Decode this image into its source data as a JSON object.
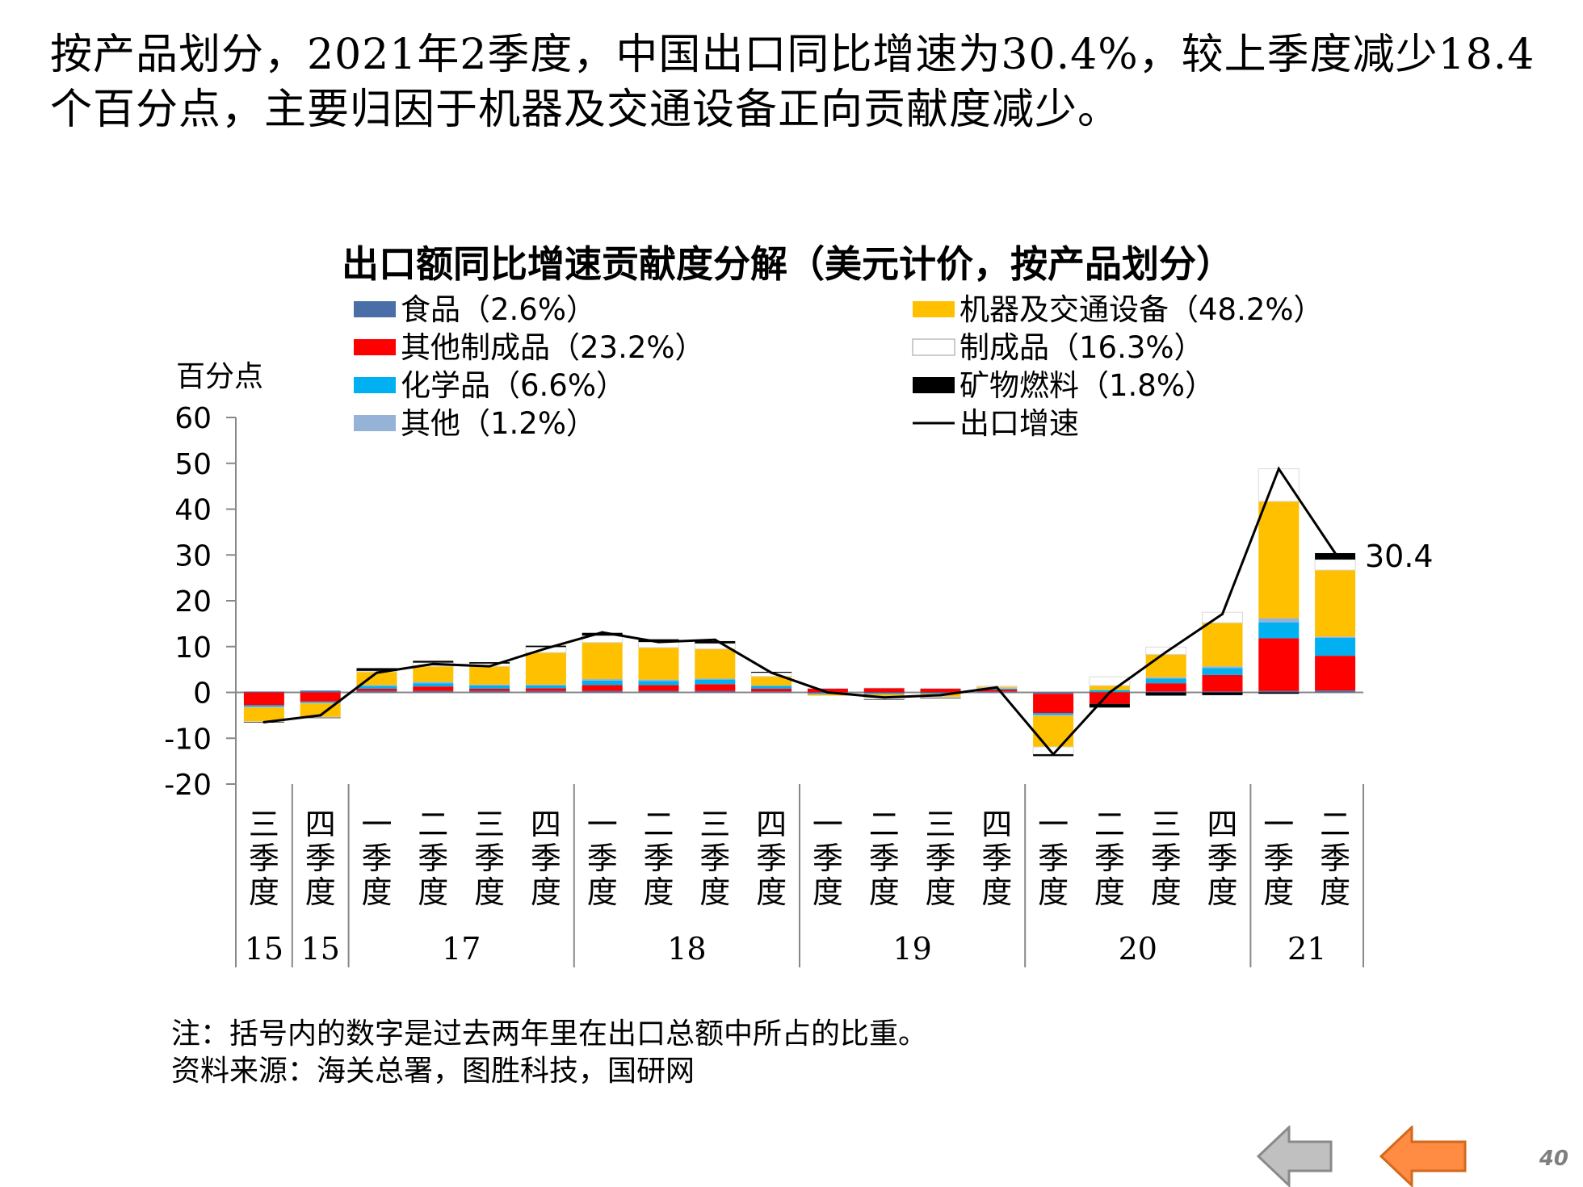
{
  "headline": {
    "line1": "按产品划分，2021年2季度，中国出口同比增速为30.4%，较上季度减少18.4",
    "line2": "个百分点，主要归因于机器及交通设备正向贡献度减少。"
  },
  "chart_data": {
    "type": "bar",
    "stacked": true,
    "title": "出口额同比增速贡献度分解（美元计价，按产品划分）",
    "ylabel": "百分点",
    "ylim": [
      -20,
      60
    ],
    "yticks": [
      60,
      50,
      40,
      30,
      20,
      10,
      0,
      -10,
      -20
    ],
    "grid": false,
    "legend": "top, two columns",
    "categories": [
      "三季度",
      "四季度",
      "一季度",
      "二季度",
      "三季度",
      "四季度",
      "一季度",
      "二季度",
      "三季度",
      "四季度",
      "一季度",
      "二季度",
      "三季度",
      "四季度",
      "一季度",
      "二季度",
      "三季度",
      "四季度",
      "一季度",
      "二季度"
    ],
    "year_groups": [
      {
        "label": "15",
        "span": 1
      },
      {
        "label": "15",
        "span": 1
      },
      {
        "label": "17",
        "span": 4
      },
      {
        "label": "18",
        "span": 4
      },
      {
        "label": "19",
        "span": 4
      },
      {
        "label": "20",
        "span": 4
      },
      {
        "label": "21",
        "span": 2
      }
    ],
    "series": [
      {
        "name": "食品（2.6%）",
        "color": "#4a6fa8",
        "values": [
          0.2,
          0.4,
          0.3,
          0.3,
          0.3,
          0.3,
          0.3,
          0.3,
          0.3,
          0.2,
          -0.2,
          -0.2,
          -0.1,
          0.2,
          -0.3,
          0.1,
          0.2,
          0.2,
          0.3,
          0.4
        ]
      },
      {
        "name": "其他制成品（23.2%）",
        "color": "#ff0000",
        "values": [
          -2.8,
          -2.0,
          0.5,
          1.0,
          0.5,
          0.6,
          1.3,
          1.3,
          1.5,
          0.6,
          0.8,
          0.9,
          0.8,
          0.4,
          -4.2,
          -2.5,
          1.8,
          3.6,
          11.5,
          7.6
        ]
      },
      {
        "name": "化学品（6.6%）",
        "color": "#00b0f0",
        "values": [
          -0.3,
          -0.2,
          0.6,
          0.7,
          0.7,
          0.6,
          1.0,
          0.9,
          1.0,
          0.6,
          -0.2,
          -0.2,
          -0.2,
          0.2,
          -0.4,
          0.4,
          1.0,
          1.5,
          3.5,
          3.9
        ]
      },
      {
        "name": "其他（1.2%）",
        "color": "#95b3d7",
        "values": [
          -0.2,
          -0.2,
          0.2,
          0.3,
          0.2,
          0.2,
          0.3,
          0.3,
          0.2,
          0.1,
          0.1,
          0.1,
          0.1,
          0.1,
          -0.2,
          0.0,
          0.3,
          0.4,
          0.9,
          0.3
        ]
      },
      {
        "name": "机器及交通设备（48.2%）",
        "color": "#ffc000",
        "values": [
          -3.1,
          -3.0,
          2.9,
          3.4,
          4.0,
          7.0,
          8.0,
          7.0,
          6.5,
          2.0,
          -0.3,
          -0.8,
          -0.7,
          0.3,
          -6.8,
          1.0,
          5.0,
          9.5,
          25.5,
          14.5
        ]
      },
      {
        "name": "制成品（16.3%）",
        "color": "#ffffff",
        "values": [
          -0.1,
          -0.1,
          0.2,
          0.8,
          0.6,
          1.2,
          1.5,
          1.2,
          1.2,
          0.8,
          0.0,
          -0.3,
          -0.2,
          0.2,
          -1.6,
          1.9,
          1.6,
          2.3,
          7.1,
          2.3
        ]
      },
      {
        "name": "矿物燃料（1.8%）",
        "color": "#000000",
        "values": [
          -0.1,
          -0.1,
          0.6,
          0.4,
          0.3,
          0.3,
          0.6,
          0.6,
          0.5,
          0.2,
          0.0,
          -0.1,
          -0.1,
          0.0,
          -0.4,
          -0.8,
          -0.7,
          -0.6,
          -0.3,
          1.4
        ]
      }
    ],
    "line": {
      "name": "出口增速",
      "color": "#000000",
      "values": [
        -6.5,
        -5.0,
        4.3,
        6.2,
        5.7,
        9.6,
        13.1,
        11.0,
        11.5,
        4.3,
        0.0,
        -1.1,
        -0.6,
        1.1,
        -13.5,
        0.0,
        8.8,
        17.1,
        48.8,
        30.4
      ]
    },
    "annotation": "30.4"
  },
  "notes": {
    "note": "注：括号内的数字是过去两年里在出口总额中所占的比重。",
    "source": "资料来源：海关总署，图胜科技，国研网"
  },
  "navigation": {
    "prev_color": "#c0c0c0",
    "next_color": "#ff8c42"
  },
  "page_number": "40"
}
